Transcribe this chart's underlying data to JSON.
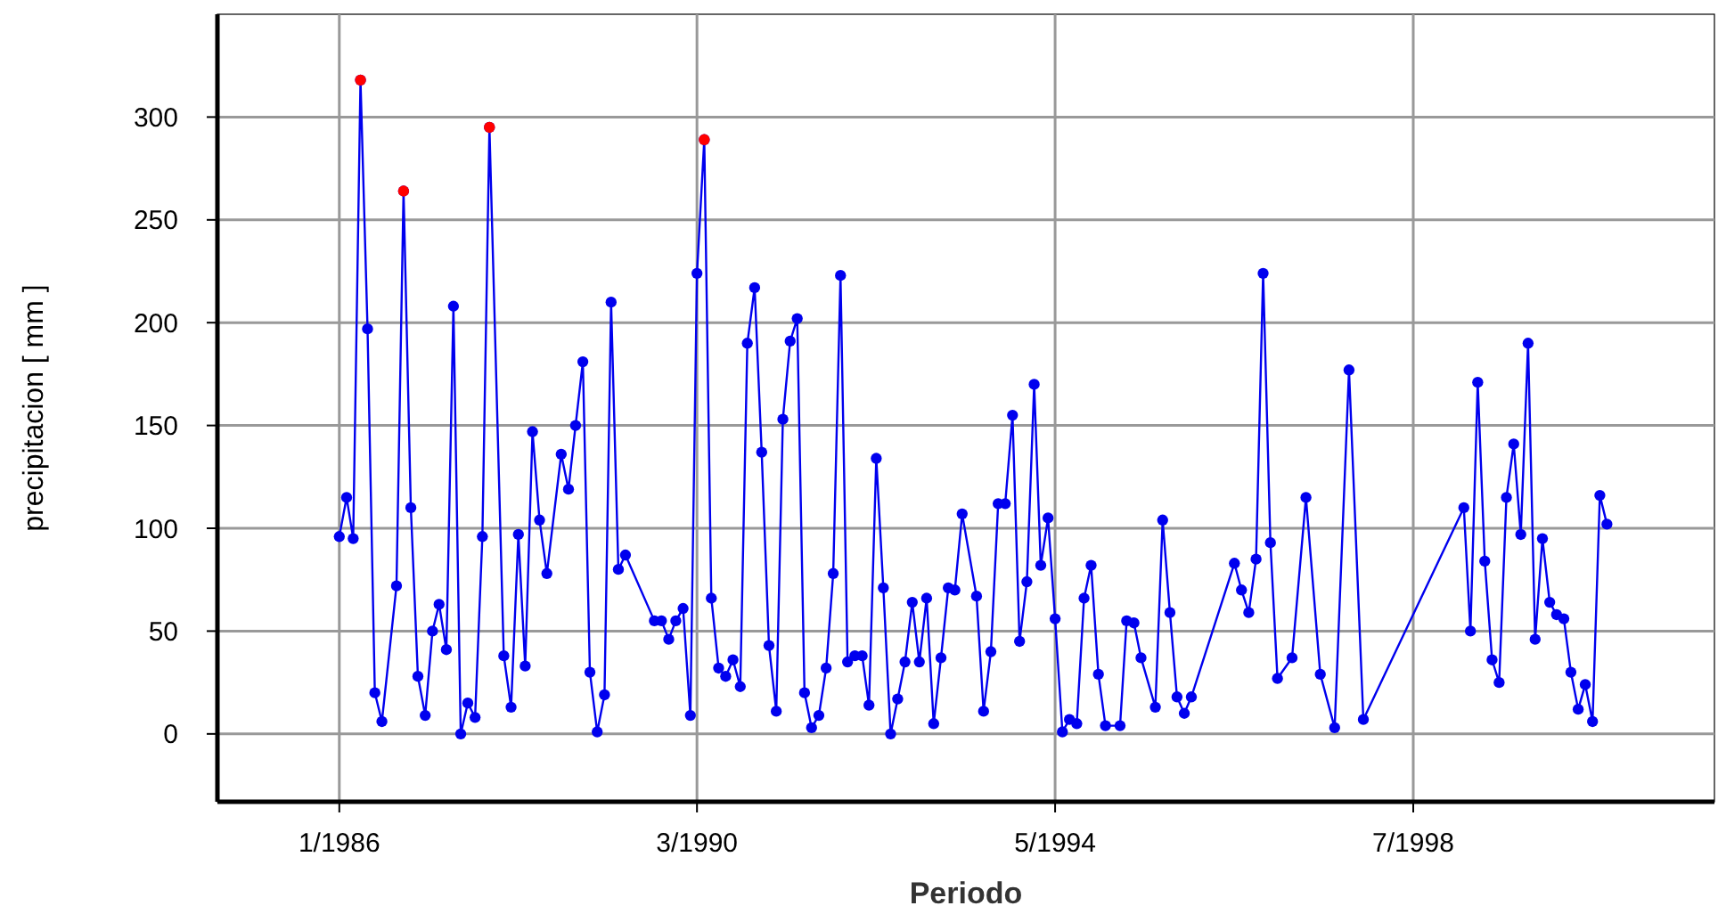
{
  "chart_data": {
    "type": "line",
    "xlabel": "Periodo",
    "ylabel": "precipitacion  [ mm ]",
    "grid": true,
    "marker": "circle",
    "xlim": [
      "1984-08",
      "2002-01"
    ],
    "xticks": [
      {
        "value": "1986-01",
        "label": "1/1986"
      },
      {
        "value": "1990-03",
        "label": "3/1990"
      },
      {
        "value": "1994-05",
        "label": "5/1994"
      },
      {
        "value": "1998-07",
        "label": "7/1998"
      }
    ],
    "ylim": [
      -33,
      350
    ],
    "yticks": [
      0,
      50,
      100,
      150,
      200,
      250,
      300
    ],
    "series": [
      {
        "color": "#0000ee",
        "x": [
          "1986-01",
          "1986-02",
          "1986-03",
          "1986-04",
          "1986-05",
          "1986-06",
          "1986-07",
          "1986-09",
          "1986-10",
          "1986-11",
          "1986-12",
          "1987-01",
          "1987-02",
          "1987-03",
          "1987-04",
          "1987-05",
          "1987-06",
          "1987-07",
          "1987-08",
          "1987-09",
          "1987-10",
          "1987-12",
          "1988-01",
          "1988-02",
          "1988-03",
          "1988-04",
          "1988-05",
          "1988-06",
          "1988-08",
          "1988-09",
          "1988-10",
          "1988-11",
          "1988-12",
          "1989-01",
          "1989-02",
          "1989-03",
          "1989-04",
          "1989-05",
          "1989-09",
          "1989-10",
          "1989-11",
          "1989-12",
          "1990-01",
          "1990-02",
          "1990-03",
          "1990-04",
          "1990-05",
          "1990-06",
          "1990-07",
          "1990-08",
          "1990-09",
          "1990-10",
          "1990-11",
          "1990-12",
          "1991-01",
          "1991-02",
          "1991-03",
          "1991-04",
          "1991-05",
          "1991-06",
          "1991-07",
          "1991-08",
          "1991-09",
          "1991-10",
          "1991-11",
          "1991-12",
          "1992-01",
          "1992-02",
          "1992-03",
          "1992-04",
          "1992-05",
          "1992-06",
          "1992-07",
          "1992-08",
          "1992-09",
          "1992-10",
          "1992-11",
          "1992-12",
          "1993-01",
          "1993-02",
          "1993-03",
          "1993-04",
          "1993-06",
          "1993-07",
          "1993-08",
          "1993-09",
          "1993-10",
          "1993-11",
          "1993-12",
          "1994-01",
          "1994-02",
          "1994-03",
          "1994-04",
          "1994-05",
          "1994-06",
          "1994-07",
          "1994-08",
          "1994-09",
          "1994-10",
          "1994-11",
          "1994-12",
          "1995-02",
          "1995-03",
          "1995-04",
          "1995-05",
          "1995-07",
          "1995-08",
          "1995-09",
          "1995-10",
          "1995-11",
          "1995-12",
          "1996-06",
          "1996-07",
          "1996-08",
          "1996-09",
          "1996-10",
          "1996-11",
          "1996-12",
          "1997-02",
          "1997-04",
          "1997-06",
          "1997-08",
          "1997-10",
          "1997-12",
          "1999-02",
          "1999-03",
          "1999-04",
          "1999-05",
          "1999-06",
          "1999-07",
          "1999-08",
          "1999-09",
          "1999-10",
          "1999-11",
          "1999-12",
          "2000-01",
          "2000-02",
          "2000-03",
          "2000-04",
          "2000-05",
          "2000-06",
          "2000-07",
          "2000-08",
          "2000-09",
          "2000-10"
        ],
        "values": [
          96,
          115,
          95,
          318,
          197,
          20,
          6,
          72,
          264,
          110,
          28,
          9,
          50,
          63,
          41,
          208,
          0,
          15,
          8,
          96,
          295,
          38,
          13,
          97,
          33,
          147,
          104,
          78,
          136,
          119,
          150,
          181,
          30,
          1,
          19,
          210,
          80,
          87,
          55,
          55,
          46,
          55,
          61,
          9,
          224,
          289,
          66,
          32,
          28,
          36,
          23,
          190,
          217,
          137,
          43,
          11,
          153,
          191,
          202,
          20,
          3,
          9,
          32,
          78,
          223,
          35,
          38,
          38,
          14,
          134,
          71,
          0,
          17,
          35,
          64,
          35,
          66,
          5,
          37,
          71,
          70,
          107,
          67,
          11,
          40,
          112,
          112,
          155,
          45,
          74,
          170,
          82,
          105,
          56,
          1,
          7,
          5,
          66,
          82,
          29,
          4,
          4,
          55,
          54,
          37,
          13,
          104,
          59,
          18,
          10,
          18,
          83,
          70,
          59,
          85,
          224,
          93,
          27,
          37,
          115,
          29,
          3,
          177,
          7,
          110,
          50,
          171,
          84,
          36,
          25,
          115,
          141,
          97,
          190,
          46,
          95,
          64,
          58,
          56,
          30,
          12,
          24,
          6,
          116,
          102
        ]
      },
      {
        "type": "scatter",
        "color": "#ff0000",
        "x": [
          "1986-04",
          "1986-10",
          "1987-10",
          "1990-04"
        ],
        "values": [
          318,
          264,
          295,
          289
        ]
      }
    ]
  }
}
